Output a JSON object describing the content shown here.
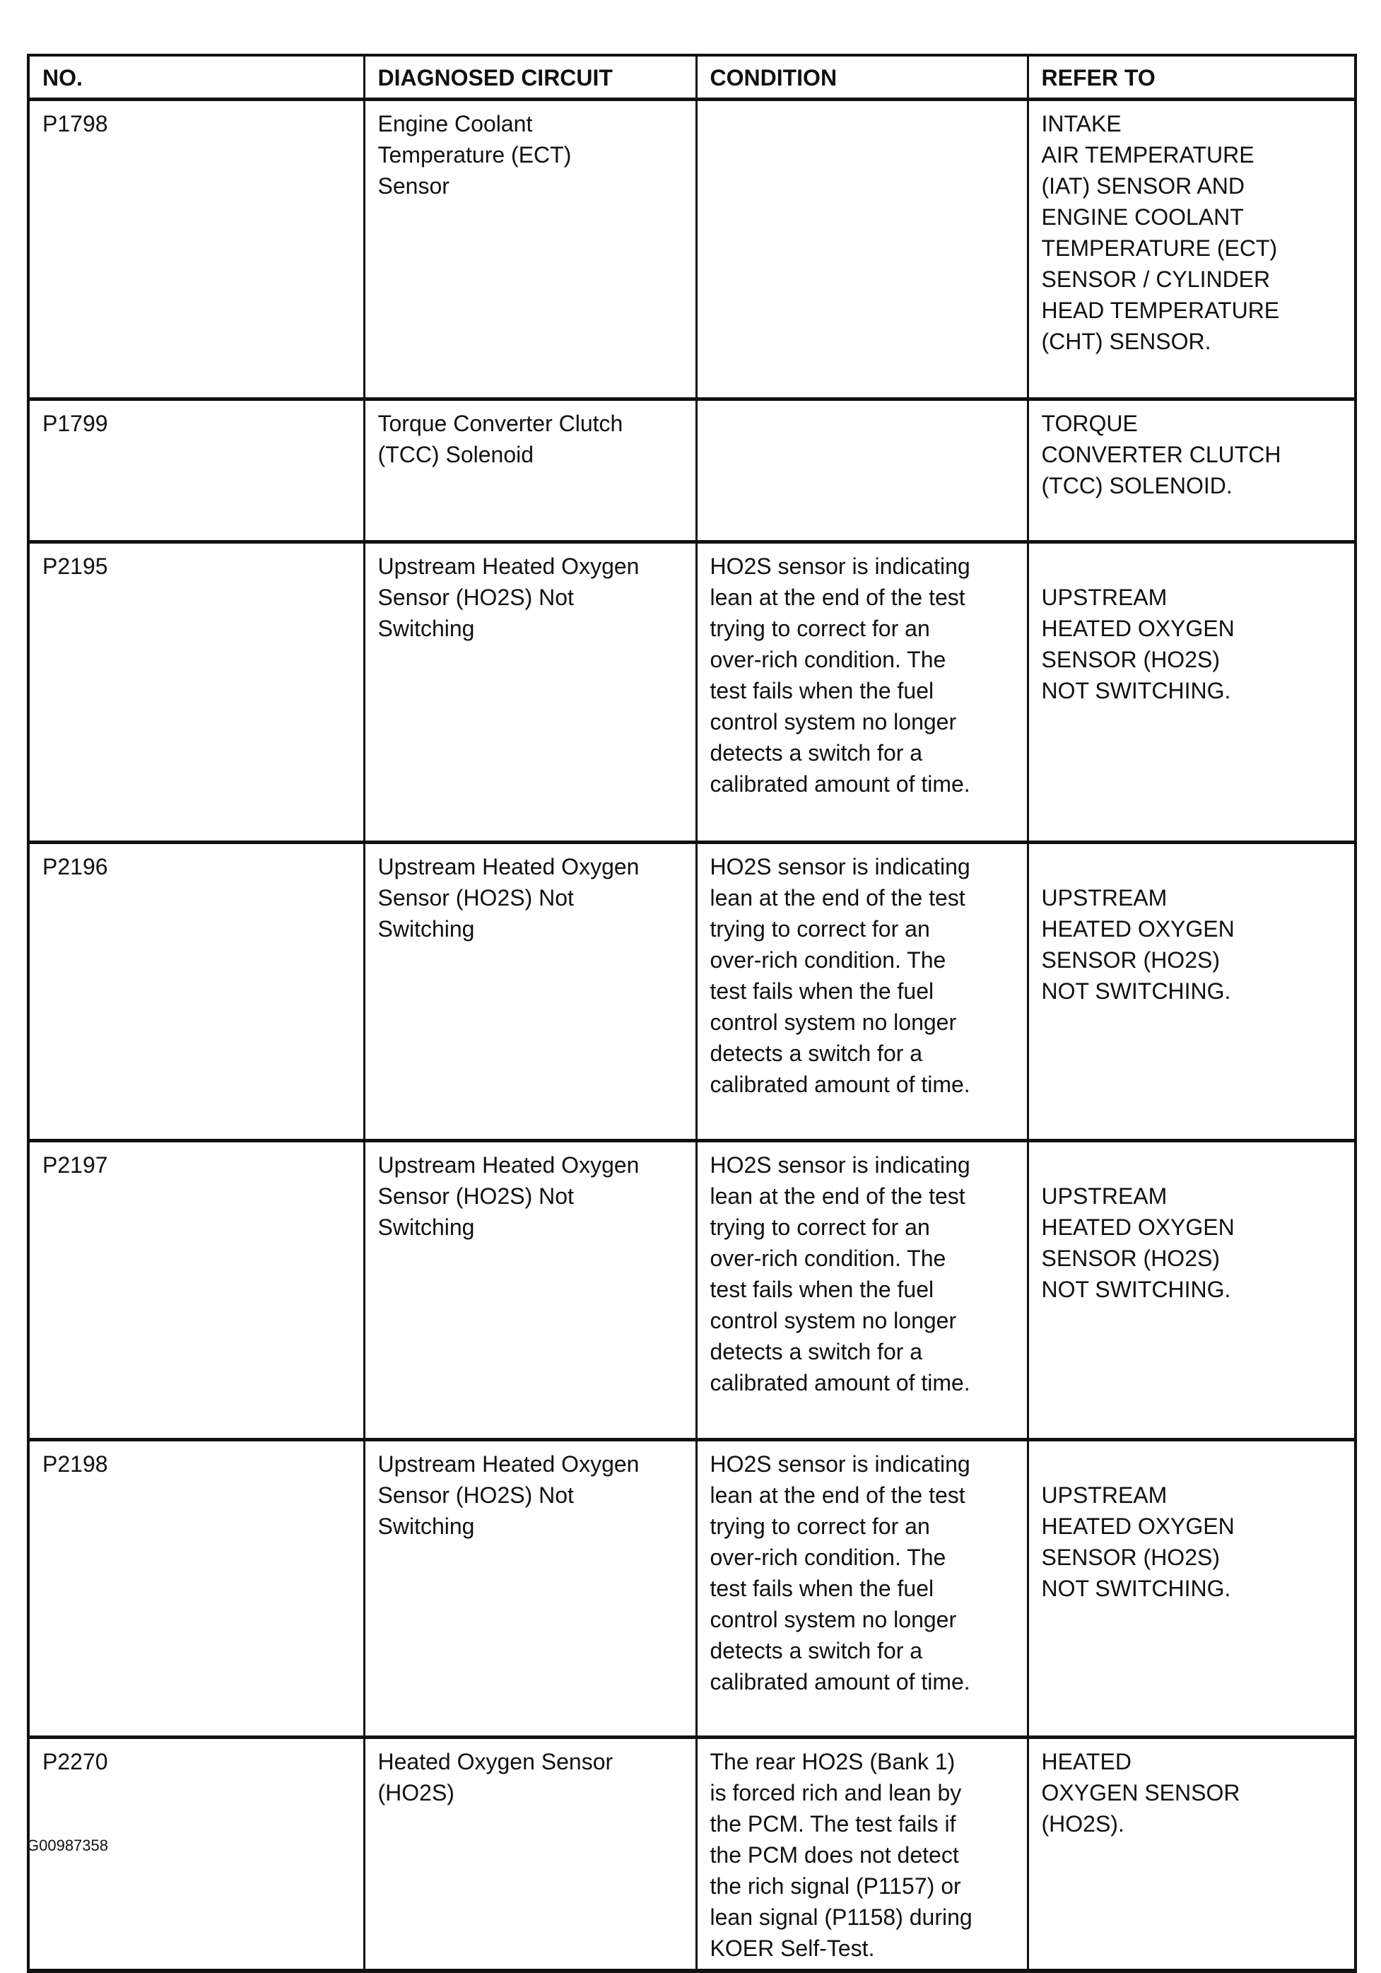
{
  "headers": {
    "no": "NO.",
    "circuit": "DIAGNOSED CIRCUIT",
    "condition": "CONDITION",
    "refer": "REFER TO"
  },
  "rows": [
    {
      "no": "P1798",
      "circuit": [
        "Engine Coolant",
        "Temperature (ECT)",
        "Sensor"
      ],
      "condition": [],
      "refer": [
        "INTAKE",
        "AIR TEMPERATURE",
        "(IAT) SENSOR AND",
        "ENGINE COOLANT",
        "TEMPERATURE (ECT)",
        "SENSOR / CYLINDER",
        "HEAD TEMPERATURE",
        "(CHT) SENSOR."
      ]
    },
    {
      "no": "P1799",
      "circuit": [
        "Torque Converter Clutch",
        "(TCC) Solenoid"
      ],
      "condition": [],
      "refer": [
        "TORQUE",
        "CONVERTER CLUTCH",
        "(TCC) SOLENOID."
      ]
    },
    {
      "no": "P2195",
      "circuit": [
        "Upstream Heated Oxygen",
        "Sensor (HO2S) Not",
        "Switching"
      ],
      "condition": [
        "HO2S sensor is indicating",
        "lean at the end of the test",
        "trying to correct for an",
        "over-rich condition. The",
        "test fails when the fuel",
        "control system no longer",
        "detects a switch for a",
        "calibrated amount of time."
      ],
      "refer": [
        "UPSTREAM",
        "HEATED OXYGEN",
        "SENSOR (HO2S)",
        "NOT SWITCHING."
      ]
    },
    {
      "no": "P2196",
      "circuit": [
        "Upstream Heated Oxygen",
        "Sensor (HO2S) Not",
        "Switching"
      ],
      "condition": [
        "HO2S sensor is indicating",
        "lean at the end of the test",
        "trying to correct for an",
        "over-rich condition. The",
        "test fails when the fuel",
        "control system no longer",
        "detects a switch for a",
        "calibrated amount of time."
      ],
      "refer": [
        "UPSTREAM",
        "HEATED OXYGEN",
        "SENSOR (HO2S)",
        "NOT SWITCHING."
      ]
    },
    {
      "no": "P2197",
      "circuit": [
        "Upstream Heated Oxygen",
        "Sensor (HO2S) Not",
        "Switching"
      ],
      "condition": [
        "HO2S sensor is indicating",
        "lean at the end of the test",
        "trying to correct for an",
        "over-rich condition. The",
        "test fails when the fuel",
        "control system no longer",
        "detects a switch for a",
        "calibrated amount of time."
      ],
      "refer": [
        "UPSTREAM",
        "HEATED OXYGEN",
        "SENSOR (HO2S)",
        "NOT SWITCHING."
      ]
    },
    {
      "no": "P2198",
      "circuit": [
        "Upstream Heated Oxygen",
        "Sensor (HO2S) Not",
        "Switching"
      ],
      "condition": [
        "HO2S sensor is indicating",
        "lean at the end of the test",
        "trying to correct for an",
        "over-rich condition. The",
        "test fails when the fuel",
        "control system no longer",
        "detects a switch for a",
        "calibrated amount of time."
      ],
      "refer": [
        "UPSTREAM",
        "HEATED OXYGEN",
        "SENSOR (HO2S)",
        "NOT SWITCHING."
      ]
    },
    {
      "no": "P2270",
      "circuit": [
        "Heated Oxygen Sensor",
        "(HO2S)"
      ],
      "condition": [
        "The rear HO2S (Bank 1)",
        "is forced rich and lean by",
        "the PCM. The test fails if",
        "the PCM does not detect",
        "the rich signal (P1157) or",
        "lean signal (P1158) during",
        "KOER Self-Test."
      ],
      "refer": [
        "HEATED",
        "OXYGEN SENSOR",
        "(HO2S)."
      ]
    }
  ],
  "footer": {
    "figure_id": "G00987358"
  }
}
